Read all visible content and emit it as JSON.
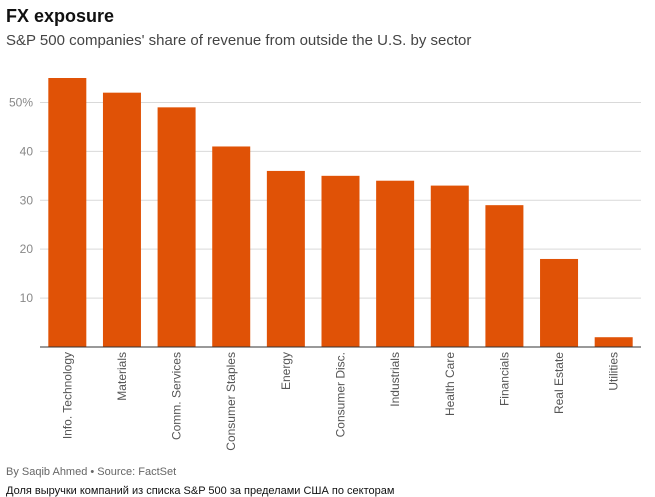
{
  "header": {
    "title": "FX exposure",
    "subtitle": "S&P 500 companies' share of revenue from outside the U.S. by sector"
  },
  "footer": {
    "byline": "By Saqib Ahmed • Source: FactSet",
    "caption": "Доля выручки компаний из списка S&P 500 за пределами США по секторам"
  },
  "chart_data": {
    "type": "bar",
    "title": "FX exposure",
    "subtitle": "S&P 500 companies' share of revenue from outside the U.S. by sector",
    "xlabel": "",
    "ylabel": "",
    "ylim": [
      0,
      55
    ],
    "yticks": [
      10,
      20,
      30,
      40,
      50
    ],
    "ytick_labels": [
      "10",
      "20",
      "30",
      "40",
      "50%"
    ],
    "grid": true,
    "bar_color": "#e05206",
    "categories": [
      "Info. Technology",
      "Materials",
      "Comm. Services",
      "Consumer Staples",
      "Energy",
      "Consumer Disc.",
      "Industrials",
      "Health Care",
      "Financials",
      "Real Estate",
      "Utilities"
    ],
    "values": [
      55,
      52,
      49,
      41,
      36,
      35,
      34,
      33,
      29,
      18,
      2
    ]
  }
}
